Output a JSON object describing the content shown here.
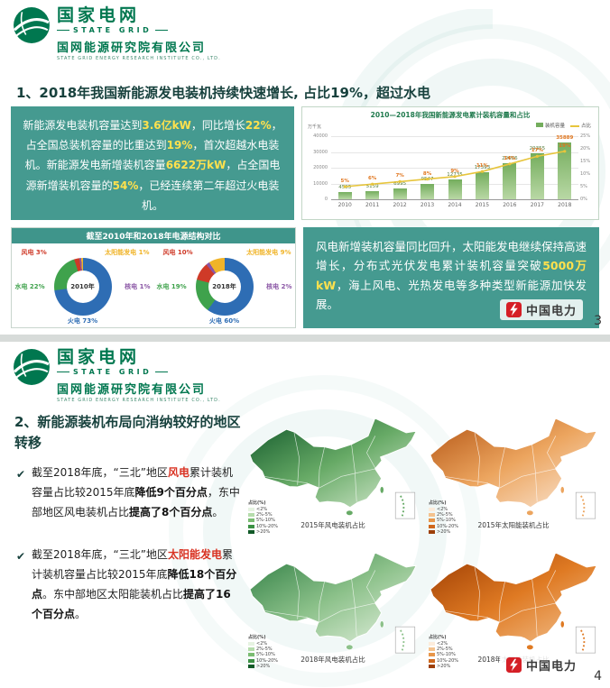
{
  "brand": {
    "cn": "国家电网",
    "en": "STATE GRID",
    "org_cn": "国网能源研究院有限公司",
    "org_en": "STATE GRID ENERGY RESEARCH INSTITUTE CO., LTD."
  },
  "watermark": {
    "label": "中国电力"
  },
  "slide3": {
    "page_number": "3",
    "title": "1、2018年我国新能源发电装机持续快速增长, 占比19%，超过水电",
    "donut_title": "截至2010年和2018年电源结构对比",
    "box1": [
      {
        "t": "新能源发电装机容量达到",
        "s": ""
      },
      {
        "t": "3.6亿kW",
        "s": "y"
      },
      {
        "t": "，同比增长",
        "s": ""
      },
      {
        "t": "22%",
        "s": "y"
      },
      {
        "t": "，占全国总装机容量的比重达到",
        "s": ""
      },
      {
        "t": "19%",
        "s": "y"
      },
      {
        "t": "，首次超越水电装机。",
        "s": ""
      },
      {
        "t": "新能源发电新增装机容量",
        "s": ""
      },
      {
        "t": "6622万kW",
        "s": "y"
      },
      {
        "t": "，占全国电源新增装机容量的",
        "s": ""
      },
      {
        "t": "54%",
        "s": "y"
      },
      {
        "t": "，已经连续第二年超过火电装机。",
        "s": ""
      }
    ],
    "box2": [
      {
        "t": "风电新增装机容量同比回升，太阳能发电继续保持高速增长，分布式光伏发电累计装机容量突破",
        "s": ""
      },
      {
        "t": "5000万kW",
        "s": "y"
      },
      {
        "t": "，海上风电、光热发电等多种类型新能源加快发展。",
        "s": ""
      }
    ]
  },
  "slide4": {
    "page_number": "4",
    "title": "2、新能源装机布局向消纳较好的地区转移",
    "bullet_marker": "✔",
    "bullets": [
      {
        "segments": [
          {
            "t": "截至2018年底，“三北”地区",
            "s": ""
          },
          {
            "t": "风电",
            "s": "r"
          },
          {
            "t": "累计装机容量占比较2015年底",
            "s": ""
          },
          {
            "t": "降低9个百分点",
            "s": "b"
          },
          {
            "t": "，东中部地区风电装机占比",
            "s": ""
          },
          {
            "t": "提高了8个百分点",
            "s": "b"
          },
          {
            "t": "。",
            "s": ""
          }
        ]
      },
      {
        "segments": [
          {
            "t": "截至2018年底，“三北”地区",
            "s": ""
          },
          {
            "t": "太阳能发电",
            "s": "r"
          },
          {
            "t": "累计装机容量占比较2015年底",
            "s": ""
          },
          {
            "t": "降低18个百分点",
            "s": "b"
          },
          {
            "t": "。东中部地区太阳能装机占比",
            "s": ""
          },
          {
            "t": "提高了16个百分点",
            "s": "b"
          },
          {
            "t": "。",
            "s": ""
          }
        ]
      }
    ]
  },
  "chart_data": [
    {
      "type": "bar",
      "title": "2010—2018年我国新能源发电累计装机容量和占比",
      "categories": [
        "2010",
        "2011",
        "2012",
        "2013",
        "2014",
        "2015",
        "2016",
        "2017",
        "2018"
      ],
      "series": [
        {
          "name": "累计装机容量（万千瓦）",
          "type": "bar",
          "values": [
            4505,
            5159,
            6995,
            9547,
            12735,
            17393,
            22606,
            29355,
            35889
          ]
        },
        {
          "name": "占总装机容量比重（%）",
          "type": "line",
          "values": [
            5,
            6,
            7,
            8,
            9,
            11,
            14,
            17,
            19
          ]
        }
      ],
      "legend": [
        "装机容量",
        "占比"
      ],
      "ylabel": "万千瓦",
      "ylim": [
        0,
        40000
      ],
      "y2lim": [
        0,
        25
      ],
      "bar_color": "#74ad5d",
      "bar_color_light": "#b9d8a5",
      "line_color": "#e7c53c",
      "value_label_color": "#567d3e",
      "last_value_color": "#e0761f"
    },
    {
      "type": "pie",
      "year": "2010年",
      "slices": [
        {
          "label": "火电",
          "pct": 73,
          "color": "#2e6db4"
        },
        {
          "label": "水电",
          "pct": 22,
          "color": "#3fa24c"
        },
        {
          "label": "风电",
          "pct": 3,
          "color": "#cf3a28"
        },
        {
          "label": "核电",
          "pct": 1,
          "color": "#8a56a5"
        },
        {
          "label": "太阳能发电",
          "pct": 1,
          "color": "#f0b429"
        }
      ]
    },
    {
      "type": "pie",
      "year": "2018年",
      "slices": [
        {
          "label": "火电",
          "pct": 60,
          "color": "#2e6db4"
        },
        {
          "label": "水电",
          "pct": 19,
          "color": "#3fa24c"
        },
        {
          "label": "风电",
          "pct": 10,
          "color": "#cf3a28"
        },
        {
          "label": "核电",
          "pct": 2,
          "color": "#8a56a5"
        },
        {
          "label": "太阳能发电",
          "pct": 9,
          "color": "#f0b429"
        }
      ]
    },
    {
      "type": "heatmap",
      "subtype": "china-choropleth",
      "title": "风电装机占比",
      "year": "2015年",
      "gradient": [
        "#10572a",
        "#67aa66",
        "#dcedd6"
      ],
      "legend_title": "占比(%)",
      "legend": [
        "<2%",
        "2%-5%",
        "5%-10%",
        "10%-20%",
        ">20%"
      ],
      "legend_colors": [
        "#e6f3e1",
        "#b5dcab",
        "#7abc72",
        "#3c9144",
        "#115a28"
      ]
    },
    {
      "type": "heatmap",
      "subtype": "china-choropleth",
      "title": "太阳能装机占比",
      "year": "2015年",
      "gradient": [
        "#b35413",
        "#eca55f",
        "#fbeadb"
      ],
      "legend_title": "占比(%)",
      "legend": [
        "<2%",
        "2%-5%",
        "5%-10%",
        "10%-20%",
        ">20%"
      ],
      "legend_colors": [
        "#fcecdb",
        "#f4c28e",
        "#e8964a",
        "#cf671c",
        "#9d3f08"
      ]
    },
    {
      "type": "heatmap",
      "subtype": "china-choropleth",
      "title": "风电装机占比",
      "year": "2018年",
      "gradient": [
        "#2e7d43",
        "#8cc18a",
        "#e7f2e2"
      ],
      "legend_title": "占比(%)",
      "legend": [
        "<2%",
        "2%-5%",
        "5%-10%",
        "10%-20%",
        ">20%"
      ],
      "legend_colors": [
        "#e6f3e1",
        "#b5dcab",
        "#7abc72",
        "#3c9144",
        "#115a28"
      ]
    },
    {
      "type": "heatmap",
      "subtype": "china-choropleth",
      "title": "太阳能装机占比",
      "year": "2018年",
      "gradient": [
        "#9c3c02",
        "#df7a23",
        "#f3c391"
      ],
      "legend_title": "占比(%)",
      "legend": [
        "<2%",
        "2%-5%",
        "5%-10%",
        "10%-20%",
        ">20%"
      ],
      "legend_colors": [
        "#fcecdb",
        "#f4c28e",
        "#e8964a",
        "#cf671c",
        "#9d3f08"
      ]
    }
  ]
}
